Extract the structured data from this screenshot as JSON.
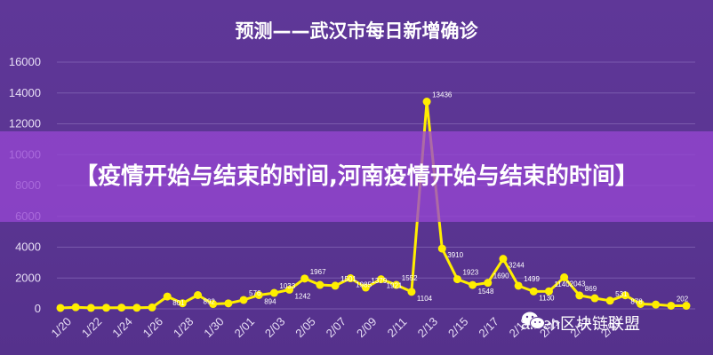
{
  "chart_data": {
    "type": "line",
    "title": "预测——武汉市每日新增确诊",
    "xlabel": "",
    "ylabel": "",
    "ylim": [
      0,
      16000
    ],
    "yticks": [
      0,
      2000,
      4000,
      6000,
      8000,
      10000,
      12000,
      14000,
      16000
    ],
    "xtick_labels": [
      "1/20",
      "1/22",
      "1/24",
      "1/26",
      "1/28",
      "1/30",
      "2/01",
      "2/03",
      "2/05",
      "2/07",
      "2/09",
      "2/11",
      "2/13",
      "2/15",
      "2/17",
      "2/19",
      "2/21",
      "2/23",
      "2/25"
    ],
    "grid": true,
    "legend": "none",
    "line_color": "#ffee00",
    "series": [
      {
        "values": [
          60,
          105,
          62,
          70,
          80,
          69,
          90,
          801,
          360,
          892,
          315,
          356,
          576,
          894,
          1033,
          1242,
          1967,
          1552,
          1501,
          1985,
          1379,
          1921,
          1552,
          1104,
          13436,
          3910,
          1923,
          1548,
          1690,
          3244,
          1499,
          1130,
          1140,
          2043,
          869,
          690,
          531,
          878,
          319,
          280,
          202,
          200
        ],
        "labels": [
          "",
          "",
          "",
          "",
          "",
          "",
          "",
          "801",
          "",
          "892",
          "",
          "",
          "576",
          "894",
          "1033",
          "1242",
          "1967",
          "",
          "1501",
          "1985",
          "1379",
          "1921",
          "1552",
          "1104",
          "13436",
          "3910",
          "1923",
          "1548",
          "1690",
          "3244",
          "1499",
          "1130",
          "1140",
          "2043",
          "869",
          "",
          "531",
          "878",
          "",
          "",
          "202",
          ""
        ]
      }
    ]
  },
  "banner": {
    "text": "【疫情开始与结束的时间,河南疫情开始与结束的时间】"
  },
  "watermark": {
    "text": "aliren区块链联盟",
    "icon": "wechat-icon"
  },
  "colors": {
    "background": "#5a3592",
    "banner": "#9646d2",
    "line": "#ffee00"
  }
}
